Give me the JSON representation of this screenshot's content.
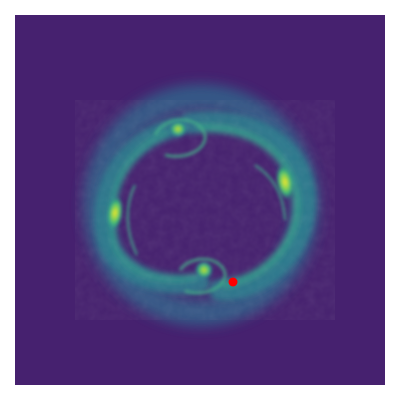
{
  "figure": {
    "description_type": "density-heatmap",
    "colormap": "viridis",
    "colormap_stops": [
      "#440154",
      "#3b528b",
      "#21918c",
      "#5ec962",
      "#fde725"
    ],
    "background_color": "#46216f",
    "ring_color": "#2c6f8e",
    "marker_color": "#ff0000",
    "axes_visible": false,
    "grid": false
  }
}
